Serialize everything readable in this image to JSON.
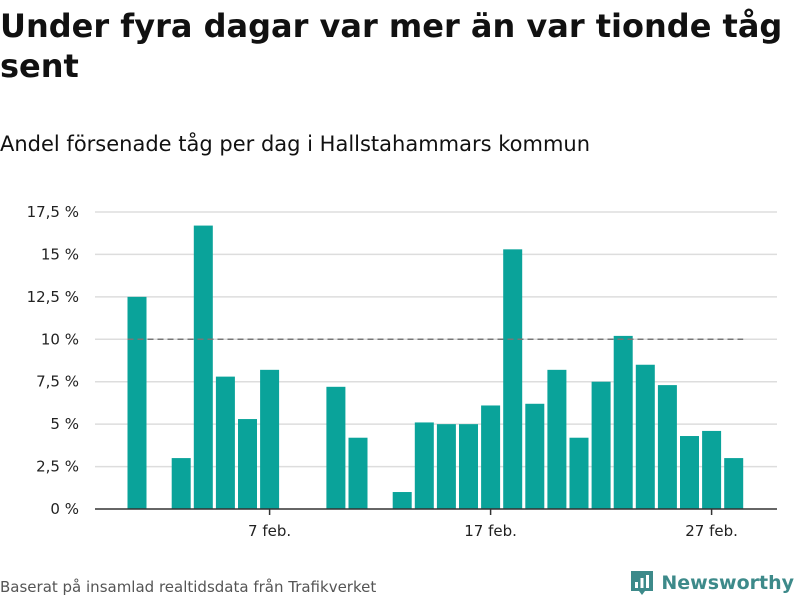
{
  "title": "Under fyra dagar var mer än var tionde tåg sent",
  "subtitle": "Andel försenade tåg per dag i Hallstahammars kommun",
  "footer": {
    "source": "Baserat på insamlad realtidsdata från Trafikverket",
    "brand": "Newsworthy"
  },
  "colors": {
    "bar": "#0aa39a",
    "reference": "#777777",
    "grid": "#dddddd",
    "brand": "#3d8a8a"
  },
  "chart_data": {
    "type": "bar",
    "x": [
      "2024-02-01",
      "2024-02-02",
      "2024-02-03",
      "2024-02-04",
      "2024-02-05",
      "2024-02-06",
      "2024-02-07",
      "2024-02-08",
      "2024-02-09",
      "2024-02-10",
      "2024-02-11",
      "2024-02-12",
      "2024-02-13",
      "2024-02-14",
      "2024-02-15",
      "2024-02-16",
      "2024-02-17",
      "2024-02-18",
      "2024-02-19",
      "2024-02-20",
      "2024-02-21",
      "2024-02-22",
      "2024-02-23",
      "2024-02-24",
      "2024-02-25",
      "2024-02-26",
      "2024-02-27",
      "2024-02-28"
    ],
    "values": [
      12.5,
      null,
      3.0,
      16.7,
      7.8,
      5.3,
      8.2,
      null,
      null,
      7.2,
      4.2,
      null,
      1.0,
      5.1,
      5.0,
      5.0,
      6.1,
      15.3,
      6.2,
      8.2,
      4.2,
      7.5,
      10.2,
      8.5,
      7.3,
      4.3,
      4.6,
      3.0
    ],
    "reference_line": 10,
    "ylim": [
      0,
      17.5
    ],
    "yticks": [
      0,
      2.5,
      5,
      7.5,
      10,
      12.5,
      15,
      17.5
    ],
    "ytick_labels": [
      "0 %",
      "2,5 %",
      "5 %",
      "7,5 %",
      "10 %",
      "12,5 %",
      "15 %",
      "17,5 %"
    ],
    "xticks": [
      {
        "index": 6,
        "label": "7 feb."
      },
      {
        "index": 16,
        "label": "17 feb."
      },
      {
        "index": 26,
        "label": "27 feb."
      }
    ],
    "xlabel": "",
    "ylabel": "",
    "grid": true,
    "legend": "none"
  }
}
